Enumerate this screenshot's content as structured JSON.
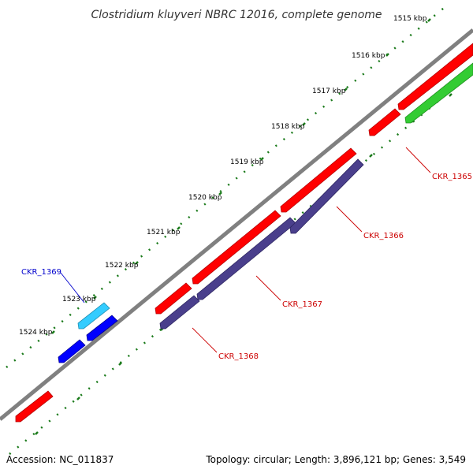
{
  "title": "Clostridium kluyveri NBRC 12016, complete genome",
  "footer": {
    "accession": "Accession: NC_011837",
    "summary": "Topology: circular; Length: 3,896,121 bp; Genes: 3,549"
  },
  "ruler": {
    "labels": [
      "1515 kbp",
      "1516 kbp",
      "1517 kbp",
      "1518 kbp",
      "1519 kbp",
      "1520 kbp",
      "1521 kbp",
      "1522 kbp",
      "1523 kbp",
      "1524 kbp"
    ]
  },
  "genes": [
    {
      "label": "CKR_1365",
      "color": "#cc0000"
    },
    {
      "label": "CKR_1366",
      "color": "#cc0000"
    },
    {
      "label": "CKR_1367",
      "color": "#cc0000"
    },
    {
      "label": "CKR_1368",
      "color": "#cc0000"
    },
    {
      "label": "CKR_1369",
      "color": "#0000cc"
    }
  ],
  "colors": {
    "backbone": "#808080",
    "forward_gene": "#ff0000",
    "reverse_gene": "#4a3f8c",
    "green_gene": "#33cc33",
    "cyan_gene": "#33ccff",
    "blue_gene": "#0000ff",
    "ticks": "#1a7a1a"
  }
}
